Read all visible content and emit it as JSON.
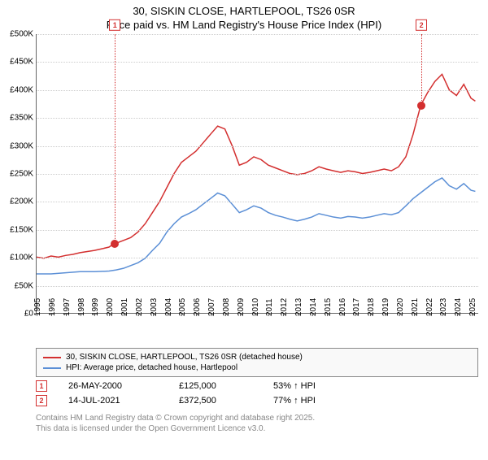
{
  "title_line1": "30, SISKIN CLOSE, HARTLEPOOL, TS26 0SR",
  "title_line2": "Price paid vs. HM Land Registry's House Price Index (HPI)",
  "chart": {
    "type": "line",
    "background_color": "#ffffff",
    "grid_color": "#cccccc",
    "axis_color": "#666666",
    "x_years": [
      1995,
      1996,
      1997,
      1998,
      1999,
      2000,
      2001,
      2002,
      2003,
      2004,
      2005,
      2006,
      2007,
      2008,
      2009,
      2010,
      2011,
      2012,
      2013,
      2014,
      2015,
      2016,
      2017,
      2018,
      2019,
      2020,
      2021,
      2022,
      2023,
      2024,
      2025
    ],
    "x_min": 1995,
    "x_max": 2025.5,
    "y_min": 0,
    "y_max": 500000,
    "y_step": 50000,
    "y_labels": [
      "£0",
      "£50K",
      "£100K",
      "£150K",
      "£200K",
      "£250K",
      "£300K",
      "£350K",
      "£400K",
      "£450K",
      "£500K"
    ],
    "tick_fontsize": 10,
    "series": [
      {
        "name": "30, SISKIN CLOSE, HARTLEPOOL, TS26 0SR (detached house)",
        "color": "#d32f2f",
        "line_width": 1.5,
        "points": [
          [
            1995,
            100000
          ],
          [
            1995.5,
            98000
          ],
          [
            1996,
            102000
          ],
          [
            1996.5,
            100000
          ],
          [
            1997,
            103000
          ],
          [
            1997.5,
            105000
          ],
          [
            1998,
            108000
          ],
          [
            1998.5,
            110000
          ],
          [
            1999,
            112000
          ],
          [
            1999.5,
            115000
          ],
          [
            2000,
            118000
          ],
          [
            2000.4,
            125000
          ],
          [
            2000.5,
            125000
          ],
          [
            2001,
            130000
          ],
          [
            2001.5,
            135000
          ],
          [
            2002,
            145000
          ],
          [
            2002.5,
            160000
          ],
          [
            2003,
            180000
          ],
          [
            2003.5,
            200000
          ],
          [
            2004,
            225000
          ],
          [
            2004.5,
            250000
          ],
          [
            2005,
            270000
          ],
          [
            2005.5,
            280000
          ],
          [
            2006,
            290000
          ],
          [
            2006.5,
            305000
          ],
          [
            2007,
            320000
          ],
          [
            2007.5,
            335000
          ],
          [
            2008,
            330000
          ],
          [
            2008.5,
            300000
          ],
          [
            2009,
            265000
          ],
          [
            2009.5,
            270000
          ],
          [
            2010,
            280000
          ],
          [
            2010.5,
            275000
          ],
          [
            2011,
            265000
          ],
          [
            2011.5,
            260000
          ],
          [
            2012,
            255000
          ],
          [
            2012.5,
            250000
          ],
          [
            2013,
            248000
          ],
          [
            2013.5,
            250000
          ],
          [
            2014,
            255000
          ],
          [
            2014.5,
            262000
          ],
          [
            2015,
            258000
          ],
          [
            2015.5,
            255000
          ],
          [
            2016,
            252000
          ],
          [
            2016.5,
            255000
          ],
          [
            2017,
            253000
          ],
          [
            2017.5,
            250000
          ],
          [
            2018,
            252000
          ],
          [
            2018.5,
            255000
          ],
          [
            2019,
            258000
          ],
          [
            2019.5,
            255000
          ],
          [
            2020,
            262000
          ],
          [
            2020.5,
            280000
          ],
          [
            2021,
            320000
          ],
          [
            2021.53,
            372500
          ],
          [
            2022,
            395000
          ],
          [
            2022.5,
            415000
          ],
          [
            2023,
            428000
          ],
          [
            2023.5,
            400000
          ],
          [
            2024,
            390000
          ],
          [
            2024.5,
            410000
          ],
          [
            2025,
            385000
          ],
          [
            2025.3,
            380000
          ]
        ]
      },
      {
        "name": "HPI: Average price, detached house, Hartlepool",
        "color": "#5b8fd6",
        "line_width": 1.5,
        "points": [
          [
            1995,
            70000
          ],
          [
            1996,
            70000
          ],
          [
            1997,
            72000
          ],
          [
            1998,
            74000
          ],
          [
            1999,
            74000
          ],
          [
            2000,
            75000
          ],
          [
            2000.5,
            77000
          ],
          [
            2001,
            80000
          ],
          [
            2002,
            90000
          ],
          [
            2002.5,
            98000
          ],
          [
            2003,
            112000
          ],
          [
            2003.5,
            125000
          ],
          [
            2004,
            145000
          ],
          [
            2004.5,
            160000
          ],
          [
            2005,
            172000
          ],
          [
            2005.5,
            178000
          ],
          [
            2006,
            185000
          ],
          [
            2006.5,
            195000
          ],
          [
            2007,
            205000
          ],
          [
            2007.5,
            215000
          ],
          [
            2008,
            210000
          ],
          [
            2008.5,
            195000
          ],
          [
            2009,
            180000
          ],
          [
            2009.5,
            185000
          ],
          [
            2010,
            192000
          ],
          [
            2010.5,
            188000
          ],
          [
            2011,
            180000
          ],
          [
            2011.5,
            175000
          ],
          [
            2012,
            172000
          ],
          [
            2012.5,
            168000
          ],
          [
            2013,
            165000
          ],
          [
            2013.5,
            168000
          ],
          [
            2014,
            172000
          ],
          [
            2014.5,
            178000
          ],
          [
            2015,
            175000
          ],
          [
            2015.5,
            172000
          ],
          [
            2016,
            170000
          ],
          [
            2016.5,
            173000
          ],
          [
            2017,
            172000
          ],
          [
            2017.5,
            170000
          ],
          [
            2018,
            172000
          ],
          [
            2018.5,
            175000
          ],
          [
            2019,
            178000
          ],
          [
            2019.5,
            176000
          ],
          [
            2020,
            180000
          ],
          [
            2020.5,
            192000
          ],
          [
            2021,
            205000
          ],
          [
            2021.5,
            215000
          ],
          [
            2022,
            225000
          ],
          [
            2022.5,
            235000
          ],
          [
            2023,
            242000
          ],
          [
            2023.5,
            228000
          ],
          [
            2024,
            222000
          ],
          [
            2024.5,
            232000
          ],
          [
            2025,
            220000
          ],
          [
            2025.3,
            218000
          ]
        ]
      }
    ],
    "markers": [
      {
        "idx": "1",
        "x": 2000.4,
        "y": 125000
      },
      {
        "idx": "2",
        "x": 2021.53,
        "y": 372500
      }
    ]
  },
  "legend": [
    {
      "color": "#d32f2f",
      "label": "30, SISKIN CLOSE, HARTLEPOOL, TS26 0SR (detached house)"
    },
    {
      "color": "#5b8fd6",
      "label": "HPI: Average price, detached house, Hartlepool"
    }
  ],
  "sales": [
    {
      "idx": "1",
      "date": "26-MAY-2000",
      "price": "£125,000",
      "pct": "53% ↑ HPI"
    },
    {
      "idx": "2",
      "date": "14-JUL-2021",
      "price": "£372,500",
      "pct": "77% ↑ HPI"
    }
  ],
  "footnote_line1": "Contains HM Land Registry data © Crown copyright and database right 2025.",
  "footnote_line2": "This data is licensed under the Open Government Licence v3.0."
}
